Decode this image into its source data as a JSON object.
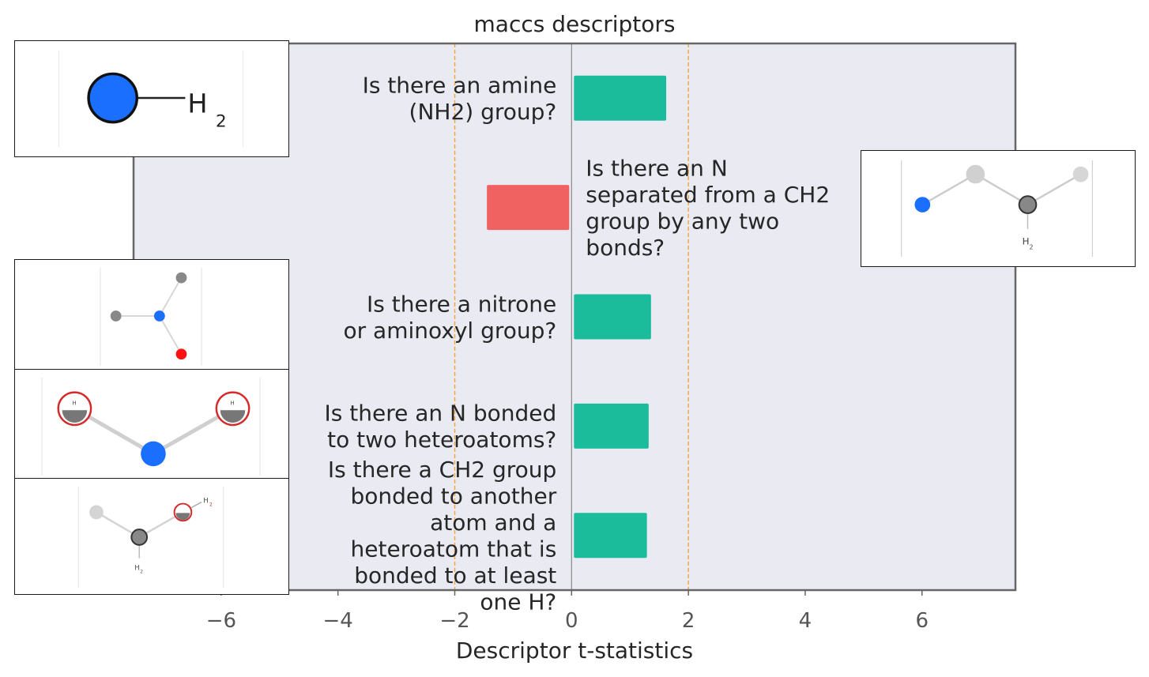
{
  "chart_data": {
    "type": "bar",
    "orientation": "horizontal",
    "title": "maccs descriptors",
    "xlabel": "Descriptor t-statistics",
    "ylabel": "",
    "xlim": [
      -7.5,
      7.6
    ],
    "xticks": [
      -6,
      -4,
      -2,
      0,
      2,
      4,
      6
    ],
    "xtick_labels": [
      "−6",
      "−4",
      "−2",
      "0",
      "2",
      "4",
      "6"
    ],
    "threshold_lines": [
      -2,
      2
    ],
    "grid": false,
    "categories": [
      "Is there an amine (NH2) group?",
      "Is there an N separated from a CH2 group by any two bonds?",
      "Is there a nitrone or aminoxyl group?",
      "Is there an N bonded to two heteroatoms?",
      "Is there a CH2 group bonded to another atom and a heteroatom that is bonded to at least one H?"
    ],
    "label_lines": [
      [
        "Is there an amine",
        "(NH2) group?"
      ],
      [
        "Is there an N",
        "separated from a CH2",
        "group by any two",
        "bonds?"
      ],
      [
        "Is there a nitrone",
        "or aminoxyl group?"
      ],
      [
        "Is there an N bonded",
        "to two heteroatoms?"
      ],
      [
        "Is there a CH2 group",
        "bonded to another",
        "atom and a",
        "heteroatom that is",
        "bonded to at least",
        "one H?"
      ]
    ],
    "values": [
      1.62,
      -1.45,
      1.36,
      1.32,
      1.29
    ],
    "colors": {
      "positive": "#1abc9c",
      "negative": "#f06262",
      "threshold": "#f5a742",
      "background": "#e9eaf2",
      "frame": "#666666"
    }
  },
  "insets": [
    {
      "name": "molecule-nh2-inset",
      "text": "H2"
    },
    {
      "name": "molecule-n-ch2-inset",
      "text": "H2"
    },
    {
      "name": "molecule-nitrone-inset"
    },
    {
      "name": "molecule-n-heteroatoms-inset",
      "text": "H"
    },
    {
      "name": "molecule-ch2-heteroatom-inset",
      "text": "H2"
    }
  ]
}
